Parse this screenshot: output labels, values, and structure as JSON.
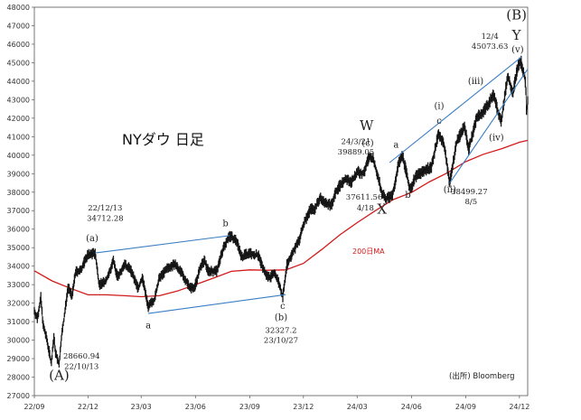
{
  "chart_data": {
    "type": "line",
    "title": "NYダウ 日足",
    "source": "(出所) Bloomberg",
    "x_ticks": [
      "22/09",
      "22/12",
      "23/03",
      "23/06",
      "23/09",
      "23/12",
      "24/03",
      "24/06",
      "24/09",
      "24/12"
    ],
    "y_ticks": [
      27000,
      28000,
      29000,
      30000,
      31000,
      32000,
      33000,
      34000,
      35000,
      36000,
      37000,
      38000,
      39000,
      40000,
      41000,
      42000,
      43000,
      44000,
      45000,
      46000,
      47000,
      48000
    ],
    "ylim": [
      27000,
      48000
    ],
    "xlim": [
      "2022-09-01",
      "2024-12-15"
    ],
    "series": [
      {
        "type": "price",
        "points": [
          [
            "2022-09-01",
            31600
          ],
          [
            "2022-09-06",
            31150
          ],
          [
            "2022-09-12",
            32300
          ],
          [
            "2022-09-16",
            30800
          ],
          [
            "2022-09-22",
            30070
          ],
          [
            "2022-09-30",
            28730
          ],
          [
            "2022-10-04",
            30200
          ],
          [
            "2022-10-07",
            29300
          ],
          [
            "2022-10-13",
            28660.94
          ],
          [
            "2022-10-17",
            30200
          ],
          [
            "2022-10-21",
            31080
          ],
          [
            "2022-10-28",
            32860
          ],
          [
            "2022-11-04",
            32400
          ],
          [
            "2022-11-10",
            33700
          ],
          [
            "2022-11-18",
            33750
          ],
          [
            "2022-11-30",
            34590
          ],
          [
            "2022-12-13",
            34712.28
          ],
          [
            "2022-12-20",
            33000
          ],
          [
            "2022-12-30",
            33150
          ],
          [
            "2023-01-06",
            33630
          ],
          [
            "2023-01-13",
            34300
          ],
          [
            "2023-01-20",
            33380
          ],
          [
            "2023-01-31",
            34090
          ],
          [
            "2023-02-10",
            33870
          ],
          [
            "2023-02-24",
            32800
          ],
          [
            "2023-03-03",
            33390
          ],
          [
            "2023-03-13",
            31820
          ],
          [
            "2023-03-15",
            31870
          ],
          [
            "2023-03-24",
            32240
          ],
          [
            "2023-03-31",
            33270
          ],
          [
            "2023-04-14",
            33890
          ],
          [
            "2023-04-28",
            34100
          ],
          [
            "2023-05-10",
            33530
          ],
          [
            "2023-05-24",
            32800
          ],
          [
            "2023-05-31",
            32900
          ],
          [
            "2023-06-09",
            33880
          ],
          [
            "2023-06-16",
            34300
          ],
          [
            "2023-06-23",
            33730
          ],
          [
            "2023-07-07",
            33730
          ],
          [
            "2023-07-18",
            34950
          ],
          [
            "2023-07-27",
            35600
          ],
          [
            "2023-08-01",
            35630
          ],
          [
            "2023-08-11",
            35280
          ],
          [
            "2023-08-18",
            34500
          ],
          [
            "2023-08-31",
            34720
          ],
          [
            "2023-09-08",
            34580
          ],
          [
            "2023-09-15",
            34620
          ],
          [
            "2023-09-21",
            34070
          ],
          [
            "2023-09-29",
            33510
          ],
          [
            "2023-10-06",
            33400
          ],
          [
            "2023-10-13",
            33670
          ],
          [
            "2023-10-20",
            33130
          ],
          [
            "2023-10-27",
            32327.2
          ],
          [
            "2023-11-03",
            34060
          ],
          [
            "2023-11-14",
            34830
          ],
          [
            "2023-11-24",
            35390
          ],
          [
            "2023-12-01",
            36250
          ],
          [
            "2023-12-13",
            37090
          ],
          [
            "2023-12-20",
            37080
          ],
          [
            "2023-12-29",
            37690
          ],
          [
            "2024-01-05",
            37460
          ],
          [
            "2024-01-17",
            37270
          ],
          [
            "2024-01-26",
            38110
          ],
          [
            "2024-02-09",
            38670
          ],
          [
            "2024-02-20",
            38560
          ],
          [
            "2024-03-01",
            39090
          ],
          [
            "2024-03-12",
            39000
          ],
          [
            "2024-03-21",
            39889.05
          ],
          [
            "2024-03-28",
            39800
          ],
          [
            "2024-04-05",
            38900
          ],
          [
            "2024-04-12",
            37980
          ],
          [
            "2024-04-18",
            37611.56
          ],
          [
            "2024-04-30",
            37820
          ],
          [
            "2024-05-10",
            39510
          ],
          [
            "2024-05-17",
            40000
          ],
          [
            "2024-05-30",
            38110
          ],
          [
            "2024-06-07",
            38800
          ],
          [
            "2024-06-21",
            39150
          ],
          [
            "2024-07-05",
            39380
          ],
          [
            "2024-07-17",
            41200
          ],
          [
            "2024-07-26",
            40590
          ],
          [
            "2024-08-05",
            38499.27
          ],
          [
            "2024-08-16",
            40660
          ],
          [
            "2024-08-30",
            41560
          ],
          [
            "2024-09-06",
            40340
          ],
          [
            "2024-09-20",
            42060
          ],
          [
            "2024-09-30",
            42330
          ],
          [
            "2024-10-11",
            42860
          ],
          [
            "2024-10-18",
            43280
          ],
          [
            "2024-10-31",
            41760
          ],
          [
            "2024-11-11",
            44290
          ],
          [
            "2024-11-20",
            43400
          ],
          [
            "2024-11-29",
            44900
          ],
          [
            "2024-12-04",
            45073.63
          ],
          [
            "2024-12-06",
            44640
          ],
          [
            "2024-12-10",
            44250
          ],
          [
            "2024-12-12",
            43550
          ],
          [
            "2024-12-13",
            42300
          ],
          [
            "2024-12-15",
            42900
          ]
        ]
      },
      {
        "type": "ma",
        "label": "200日MA",
        "color": "#d21a1a",
        "points": [
          [
            "2022-09-01",
            33750
          ],
          [
            "2022-10-01",
            33200
          ],
          [
            "2022-11-01",
            32800
          ],
          [
            "2022-12-01",
            32450
          ],
          [
            "2023-01-01",
            32450
          ],
          [
            "2023-02-01",
            32400
          ],
          [
            "2023-03-01",
            32350
          ],
          [
            "2023-04-01",
            32400
          ],
          [
            "2023-05-01",
            32650
          ],
          [
            "2023-06-01",
            33000
          ],
          [
            "2023-07-01",
            33350
          ],
          [
            "2023-08-01",
            33720
          ],
          [
            "2023-09-01",
            33800
          ],
          [
            "2023-10-01",
            33780
          ],
          [
            "2023-11-01",
            33800
          ],
          [
            "2023-12-01",
            34150
          ],
          [
            "2024-01-01",
            34900
          ],
          [
            "2024-02-01",
            35700
          ],
          [
            "2024-03-01",
            36350
          ],
          [
            "2024-04-01",
            37000
          ],
          [
            "2024-05-01",
            37600
          ],
          [
            "2024-06-01",
            37980
          ],
          [
            "2024-07-01",
            38550
          ],
          [
            "2024-08-01",
            39050
          ],
          [
            "2024-09-01",
            39650
          ],
          [
            "2024-10-01",
            40050
          ],
          [
            "2024-11-01",
            40350
          ],
          [
            "2024-12-01",
            40700
          ],
          [
            "2024-12-15",
            40800
          ]
        ]
      }
    ],
    "trend_lines": [
      {
        "from": [
          "2022-12-13",
          34712.28
        ],
        "to": [
          "2023-07-29",
          35650
        ],
        "color": "#3a7fc4"
      },
      {
        "from": [
          "2023-03-13",
          31440
        ],
        "to": [
          "2023-11-01",
          32460
        ],
        "color": "#3a7fc4"
      },
      {
        "from": [
          "2024-04-25",
          39600
        ],
        "to": [
          "2024-12-04",
          45300
        ],
        "color": "#3a7fc4"
      },
      {
        "from": [
          "2024-08-05",
          38499.27
        ],
        "to": [
          "2024-12-15",
          44650
        ],
        "color": "#3a7fc4"
      }
    ],
    "annotations": [
      {
        "text": "(A)",
        "x": "2022-10-13",
        "y": 27850,
        "style": "big"
      },
      {
        "text": "28660.94",
        "x": "2022-11-20",
        "y": 29000,
        "style": "small"
      },
      {
        "text": "22/10/13",
        "x": "2022-11-20",
        "y": 28450,
        "style": "small"
      },
      {
        "text": "22/12/13",
        "x": "2022-12-30",
        "y": 37000,
        "style": "small"
      },
      {
        "text": "34712.28",
        "x": "2022-12-30",
        "y": 36450,
        "style": "small"
      },
      {
        "text": "(a)",
        "x": "2022-12-08",
        "y": 35350,
        "style": "normal"
      },
      {
        "text": "a",
        "x": "2023-03-13",
        "y": 30650,
        "style": "normal"
      },
      {
        "text": "b",
        "x": "2023-07-22",
        "y": 36150,
        "style": "normal"
      },
      {
        "text": "c",
        "x": "2023-10-27",
        "y": 31700,
        "style": "normal"
      },
      {
        "text": "(b)",
        "x": "2023-10-24",
        "y": 31080,
        "style": "normal"
      },
      {
        "text": "32327.2",
        "x": "2023-10-24",
        "y": 30400,
        "style": "small"
      },
      {
        "text": "23/10/27",
        "x": "2023-10-24",
        "y": 29850,
        "style": "small"
      },
      {
        "text": "W",
        "x": "2024-03-17",
        "y": 41350,
        "style": "big"
      },
      {
        "text": "(c)",
        "x": "2024-03-19",
        "y": 40500,
        "style": "normal"
      },
      {
        "text": "24/3/21",
        "x": "2024-02-28",
        "y": 40600,
        "style": "small"
      },
      {
        "text": "39889.05",
        "x": "2024-02-28",
        "y": 40050,
        "style": "small"
      },
      {
        "text": "X",
        "x": "2024-04-12",
        "y": 36850,
        "style": "big"
      },
      {
        "text": "37611.56",
        "x": "2024-03-13",
        "y": 37600,
        "style": "small"
      },
      {
        "text": "4/18",
        "x": "2024-03-15",
        "y": 37000,
        "style": "small"
      },
      {
        "text": "a",
        "x": "2024-05-06",
        "y": 40400,
        "style": "normal"
      },
      {
        "text": "b",
        "x": "2024-05-26",
        "y": 37700,
        "style": "normal"
      },
      {
        "text": "c",
        "x": "2024-07-18",
        "y": 41700,
        "style": "normal"
      },
      {
        "text": "(i)",
        "x": "2024-07-18",
        "y": 42500,
        "style": "normal"
      },
      {
        "text": "(ii)",
        "x": "2024-08-05",
        "y": 38000,
        "style": "normal"
      },
      {
        "text": "38499.27",
        "x": "2024-09-07",
        "y": 37900,
        "style": "small"
      },
      {
        "text": "8/5",
        "x": "2024-09-10",
        "y": 37350,
        "style": "small"
      },
      {
        "text": "(iii)",
        "x": "2024-09-18",
        "y": 43850,
        "style": "normal"
      },
      {
        "text": "(iv)",
        "x": "2024-10-23",
        "y": 40800,
        "style": "normal"
      },
      {
        "text": "12/4",
        "x": "2024-10-12",
        "y": 46300,
        "style": "small"
      },
      {
        "text": "45073.63",
        "x": "2024-10-12",
        "y": 45750,
        "style": "small"
      },
      {
        "text": "Y",
        "x": "2024-11-26",
        "y": 46250,
        "style": "big"
      },
      {
        "text": "(v)",
        "x": "2024-11-28",
        "y": 45550,
        "style": "normal"
      },
      {
        "text": "(B)",
        "x": "2024-11-26",
        "y": 47350,
        "style": "big"
      }
    ]
  }
}
